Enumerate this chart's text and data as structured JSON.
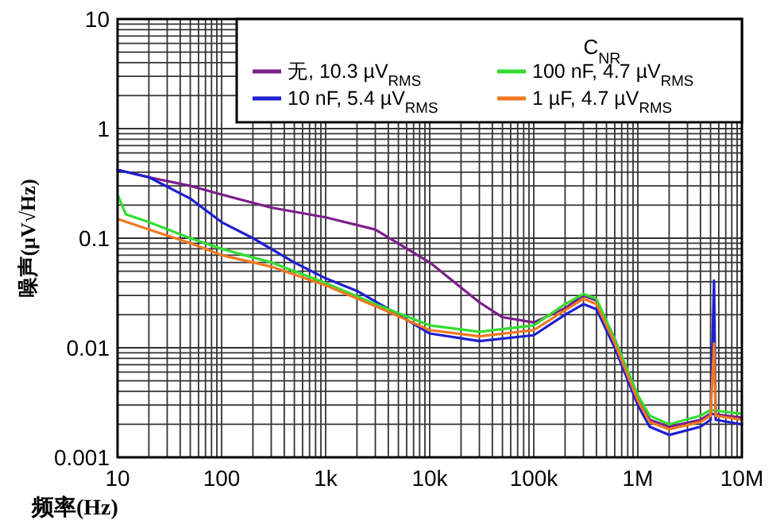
{
  "chart_data": {
    "type": "line",
    "xlabel": "频率(Hz)",
    "ylabel": "噪声(µV√Hz)",
    "legend_title": "C$_{NR}$",
    "log": "xy",
    "grid": true,
    "legend": "top right",
    "xlim": [
      10,
      10000000
    ],
    "ylim": [
      0.001,
      10
    ],
    "xticks": [
      10,
      100,
      {
        "value": 1000,
        "label": "1k"
      },
      {
        "value": 10000,
        "label": "10k"
      },
      {
        "value": 100000,
        "label": "100k"
      },
      {
        "value": 1000000,
        "label": "1M"
      },
      {
        "value": 10000000,
        "label": "10M"
      }
    ],
    "yticks": [
      0.001,
      0.01,
      0.1,
      1,
      10
    ],
    "series": [
      {
        "name": "无, 10.3 µV$_{RMS}$",
        "color": "#7b1f8a",
        "x": [
          10,
          20,
          50,
          100,
          300,
          1000,
          3000,
          10000,
          30000,
          50000,
          100000,
          200000,
          300000,
          400000,
          600000,
          1000000,
          1300000,
          2000000,
          4000000,
          5000000,
          10000000
        ],
        "values": [
          0.42,
          0.36,
          0.3,
          0.25,
          0.19,
          0.155,
          0.12,
          0.06,
          0.026,
          0.019,
          0.017,
          0.023,
          0.03,
          0.027,
          0.012,
          0.0035,
          0.0022,
          0.0019,
          0.0022,
          0.0025,
          0.0023
        ]
      },
      {
        "name": "10 nF, 5.4 µV$_{RMS}$",
        "color": "#1f1fd0",
        "x": [
          10,
          20,
          50,
          100,
          200,
          500,
          1000,
          2000,
          5000,
          10000,
          30000,
          100000,
          200000,
          300000,
          400000,
          600000,
          1000000,
          1300000,
          2000000,
          4000000,
          5000000,
          5400000,
          5600000,
          10000000
        ],
        "values": [
          0.42,
          0.36,
          0.23,
          0.14,
          0.1,
          0.06,
          0.043,
          0.033,
          0.02,
          0.0135,
          0.0115,
          0.013,
          0.02,
          0.025,
          0.0225,
          0.01,
          0.003,
          0.0019,
          0.0016,
          0.0019,
          0.0022,
          0.041,
          0.0022,
          0.002
        ]
      },
      {
        "name": "100 nF, 4.7  µV$_{RMS}$",
        "color": "#33dd33",
        "x": [
          10,
          12,
          20,
          50,
          100,
          300,
          1000,
          3000,
          10000,
          30000,
          100000,
          200000,
          300000,
          400000,
          600000,
          1000000,
          1300000,
          2000000,
          4000000,
          5000000,
          10000000
        ],
        "values": [
          0.25,
          0.165,
          0.14,
          0.1,
          0.08,
          0.06,
          0.039,
          0.025,
          0.016,
          0.014,
          0.016,
          0.025,
          0.031,
          0.028,
          0.012,
          0.0037,
          0.0024,
          0.002,
          0.0024,
          0.0027,
          0.0025
        ]
      },
      {
        "name": "1 µF, 4.7  µV$_{RMS}$",
        "color": "#f07820",
        "x": [
          10,
          20,
          50,
          100,
          300,
          1000,
          3000,
          10000,
          30000,
          100000,
          200000,
          300000,
          400000,
          600000,
          1000000,
          1300000,
          2000000,
          4000000,
          5000000,
          5400000,
          5600000,
          10000000
        ],
        "values": [
          0.15,
          0.12,
          0.09,
          0.07,
          0.055,
          0.037,
          0.024,
          0.0145,
          0.0127,
          0.0145,
          0.022,
          0.028,
          0.025,
          0.011,
          0.0033,
          0.0021,
          0.0018,
          0.0021,
          0.0024,
          0.011,
          0.0024,
          0.0022
        ]
      }
    ]
  }
}
